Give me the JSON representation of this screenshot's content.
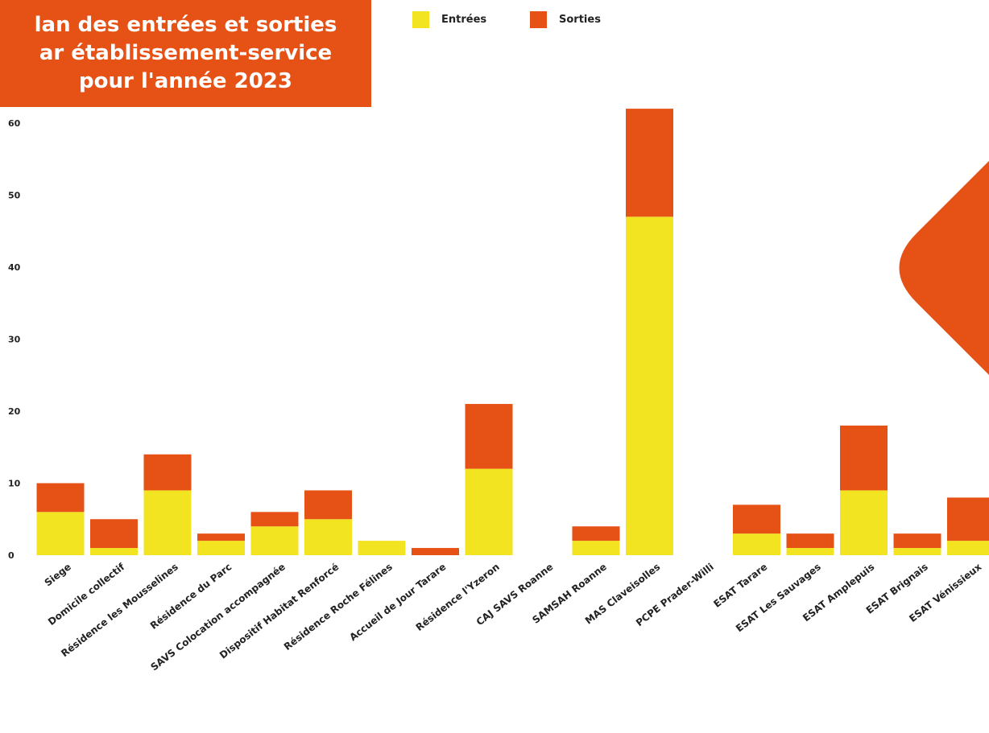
{
  "title": {
    "lines": [
      "lan des entrées et sorties",
      "ar établissement-service",
      "pour l'année 2023"
    ]
  },
  "colors": {
    "title_bg": "#E65116",
    "entrees": "#F2E421",
    "sorties": "#E65116",
    "decoration": "#E65116"
  },
  "legend": [
    {
      "label": "Entrées",
      "color": "#F2E421"
    },
    {
      "label": "Sorties",
      "color": "#E65116"
    }
  ],
  "chart_data": {
    "type": "bar",
    "stacked": true,
    "categories": [
      "Siege",
      "Domicile collectif",
      "Résidence les Mousselines",
      "Résidence du Parc",
      "SAVS Colocation accompagnée",
      "Dispositif Habitat Renforcé",
      "Résidence Roche Félines",
      "Accueil de Jour Tarare",
      "Résidence l'Yzeron",
      "CAJ SAVS Roanne",
      "SAMSAH Roanne",
      "MAS Claveisolles",
      "PCPE Prader-Willi",
      "ESAT Tarare",
      "ESAT Les Sauvages",
      "ESAT Amplepuis",
      "ESAT Brignais",
      "ESAT Vénissieux"
    ],
    "series": [
      {
        "name": "Entrées",
        "values": [
          6,
          1,
          9,
          2,
          4,
          5,
          2,
          0,
          12,
          0,
          2,
          47,
          0,
          3,
          1,
          9,
          1,
          2
        ]
      },
      {
        "name": "Sorties",
        "values": [
          4,
          4,
          5,
          1,
          2,
          4,
          0,
          1,
          9,
          0,
          2,
          15,
          0,
          4,
          2,
          9,
          2,
          6
        ]
      }
    ],
    "y_ticks": [
      "0",
      "10",
      "20",
      "30",
      "40",
      "50",
      "60"
    ],
    "ylim": [
      0,
      62
    ],
    "legend_position": "top",
    "grid": false
  }
}
